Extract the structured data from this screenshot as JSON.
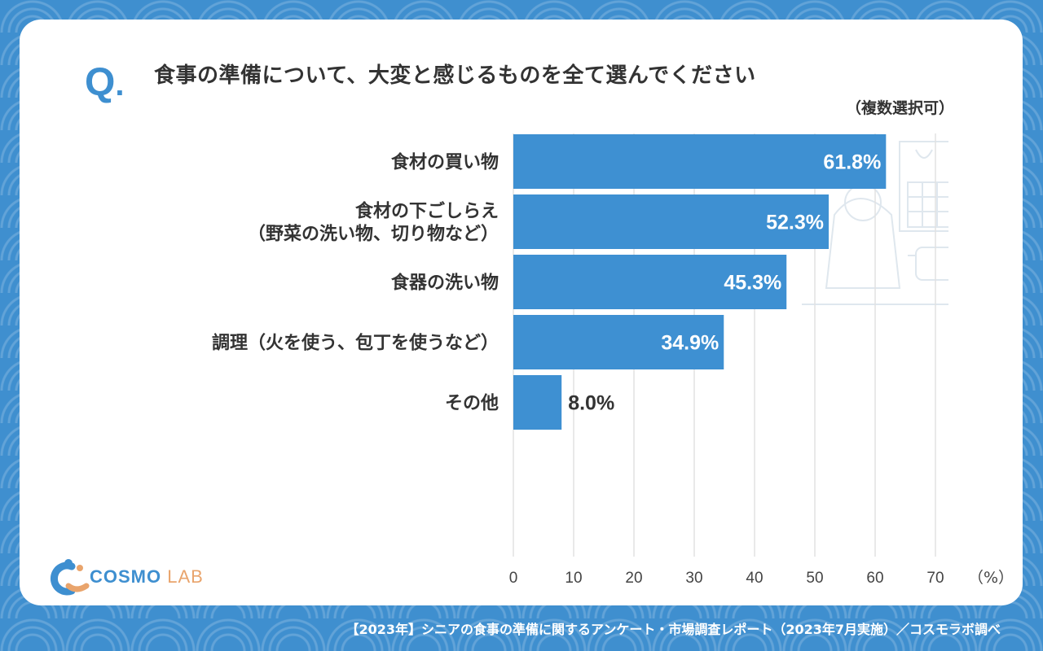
{
  "question": {
    "mark": "Q",
    "dot": ".",
    "text": "食事の準備について、大変と感じるものを全て選んでください",
    "note": "（複数選択可）"
  },
  "chart_data": {
    "type": "bar",
    "orientation": "horizontal",
    "categories": [
      [
        "食材の買い物"
      ],
      [
        "食材の下ごしらえ",
        "（野菜の洗い物、切り物など）"
      ],
      [
        "食器の洗い物"
      ],
      [
        "調理（火を使う、包丁を使うなど）"
      ],
      [
        "その他"
      ]
    ],
    "values": [
      61.8,
      52.3,
      45.3,
      34.9,
      8.0
    ],
    "value_labels": [
      "61.8%",
      "52.3%",
      "45.3%",
      "34.9%",
      "8.0%"
    ],
    "xlim": [
      0,
      70
    ],
    "xticks": [
      0,
      10,
      20,
      30,
      40,
      50,
      60,
      70
    ],
    "x_unit": "（%）",
    "grid": true,
    "bar_color": "#3e90d2"
  },
  "logo": {
    "cosmo": "COSMO",
    "lab": "LAB"
  },
  "footer": "【2023年】シニアの食事の準備に関するアンケート・市場調査レポート（2023年7月実施）／コスモラボ調べ",
  "colors": {
    "background": "#3f8fcf",
    "accent": "#3e8fd0",
    "text": "#333333",
    "logo_orange": "#e9a46c"
  }
}
